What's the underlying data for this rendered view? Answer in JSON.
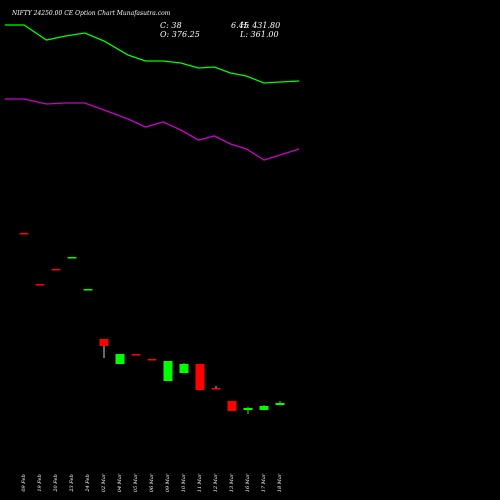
{
  "header": {
    "title": "NIFTY 24250.00  CE Option Chart Munafasutra.com",
    "close": "C: 38",
    "high": "H: 431.80",
    "open": "O: 376.25",
    "low": "L: 361.00",
    "overlay": "6.45"
  },
  "colors": {
    "background": "#000000",
    "up": "#00ff00",
    "down": "#ff0000",
    "ma_short": "#00ff00",
    "ma_long": "#cc00cc",
    "text": "#ffffff"
  },
  "chart_data": {
    "type": "candlestick",
    "categories": [
      "09 Feb",
      "19 Feb",
      "20 Feb",
      "23 Feb",
      "24 Feb",
      "02 Mar",
      "04 Mar",
      "05 Mar",
      "06 Mar",
      "09 Mar",
      "10 Mar",
      "11 Mar",
      "12 Mar",
      "13 Mar",
      "16 Mar",
      "17 Mar",
      "18 Mar"
    ],
    "ylim": [
      0,
      460
    ],
    "candles": [
      {
        "open": 227,
        "close": 227,
        "high": 227,
        "low": 227,
        "dir": "down"
      },
      {
        "open": 176,
        "close": 176,
        "high": 176,
        "low": 176,
        "dir": "down"
      },
      {
        "open": 191,
        "close": 191,
        "high": 191,
        "low": 191,
        "dir": "down"
      },
      {
        "open": 203,
        "close": 203,
        "high": 203,
        "low": 203,
        "dir": "up"
      },
      {
        "open": 171,
        "close": 171,
        "high": 171,
        "low": 171,
        "dir": "up"
      },
      {
        "open": 121,
        "close": 114,
        "high": 121,
        "low": 102,
        "dir": "down"
      },
      {
        "open": 96,
        "close": 106,
        "high": 106,
        "low": 96,
        "dir": "up"
      },
      {
        "open": 106,
        "close": 106,
        "high": 106,
        "low": 106,
        "dir": "down"
      },
      {
        "open": 101,
        "close": 101,
        "high": 101,
        "low": 101,
        "dir": "down"
      },
      {
        "open": 79,
        "close": 99,
        "high": 99,
        "low": 79,
        "dir": "up"
      },
      {
        "open": 87,
        "close": 96,
        "high": 97,
        "low": 87,
        "dir": "up"
      },
      {
        "open": 96,
        "close": 70,
        "high": 96,
        "low": 70,
        "dir": "down"
      },
      {
        "open": 72,
        "close": 72,
        "high": 74,
        "low": 71,
        "dir": "down"
      },
      {
        "open": 59,
        "close": 49,
        "high": 59,
        "low": 49,
        "dir": "down"
      },
      {
        "open": 50,
        "close": 52,
        "high": 53,
        "low": 46,
        "dir": "up"
      },
      {
        "open": 50,
        "close": 54,
        "high": 55,
        "low": 50,
        "dir": "up"
      },
      {
        "open": 55,
        "close": 57,
        "high": 59,
        "low": 55,
        "dir": "up"
      }
    ],
    "ma_short": {
      "x": [
        -1.2,
        0,
        1.4,
        2.6,
        3.8,
        5.0,
        6.5,
        7.6,
        8.7,
        9.8,
        10.9,
        11.9,
        12.9,
        13.9,
        15.0,
        16.0,
        17.2
      ],
      "values": [
        435,
        435,
        420,
        424,
        427,
        419,
        405,
        399,
        399,
        397,
        392,
        393,
        387,
        384,
        377,
        378,
        379
      ]
    },
    "ma_long": {
      "x": [
        -1.2,
        0,
        1.4,
        2.6,
        3.8,
        5.0,
        6.5,
        7.6,
        8.7,
        9.8,
        10.9,
        11.9,
        12.9,
        13.9,
        15.0,
        16.0,
        17.2
      ],
      "values": [
        361,
        361,
        356,
        357,
        357,
        350,
        341,
        333,
        338,
        330,
        320,
        324,
        316,
        311,
        300,
        305,
        311
      ]
    }
  }
}
